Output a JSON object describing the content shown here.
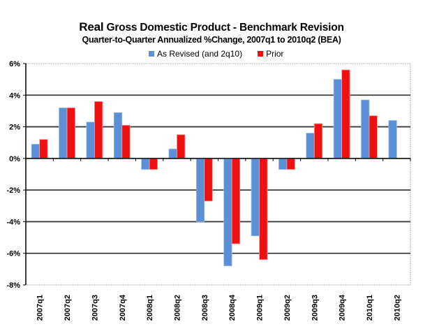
{
  "chart_data": {
    "type": "bar",
    "title_lead": "Real",
    "title_rest": " Gross Domestic Product - Benchmark Revision",
    "subtitle": "Quarter-to-Quarter Annualized %Change, 2007q1 to 2010q2 (BEA)",
    "xlabel": "",
    "ylabel": "",
    "ylim": [
      -8,
      6
    ],
    "yticks": [
      6,
      4,
      2,
      0,
      -2,
      -4,
      -6,
      -8
    ],
    "ytick_labels": [
      "6%",
      "4%",
      "2%",
      "0%",
      "-2%",
      "-4%",
      "-6%",
      "-8%"
    ],
    "grid": true,
    "legend_position": "top-center",
    "categories": [
      "2007q1",
      "2007q2",
      "2007q3",
      "2007q4",
      "2008q1",
      "2008q2",
      "2008q3",
      "2008q4",
      "2009q1",
      "2009q2",
      "2009q3",
      "2009q4",
      "2010q1",
      "2010q2"
    ],
    "series": [
      {
        "name": "As Revised (and 2q10)",
        "color": "#5B8FD6",
        "values": [
          0.9,
          3.2,
          2.3,
          2.9,
          -0.7,
          0.6,
          -4.0,
          -6.8,
          -4.9,
          -0.7,
          1.6,
          5.0,
          3.7,
          2.4
        ]
      },
      {
        "name": "Prior",
        "color": "#EE1111",
        "values": [
          1.2,
          3.2,
          3.6,
          2.1,
          -0.7,
          1.5,
          -2.7,
          -5.4,
          -6.4,
          -0.7,
          2.2,
          5.6,
          2.7,
          null
        ]
      }
    ]
  }
}
